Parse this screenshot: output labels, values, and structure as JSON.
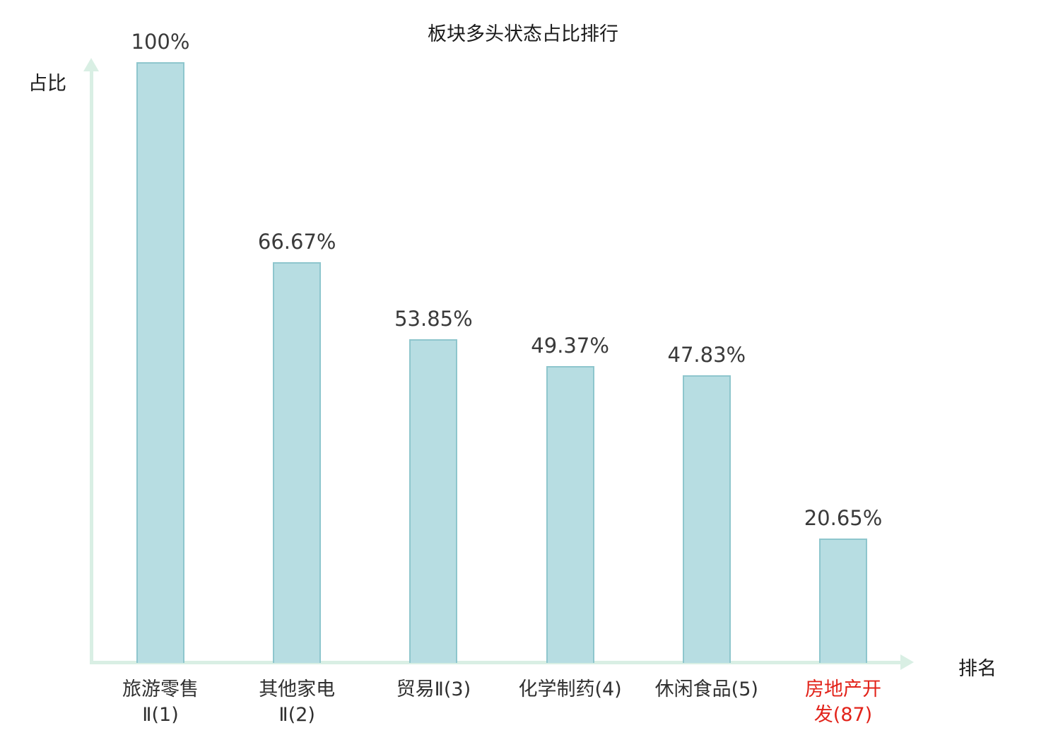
{
  "chart_data": {
    "type": "bar",
    "title": "板块多头状态占比排行",
    "xlabel": "排名",
    "ylabel": "占比",
    "ylim": [
      0,
      100
    ],
    "grid": false,
    "legend": "none",
    "categories": [
      "旅游零售Ⅱ(1)",
      "其他家电Ⅱ(2)",
      "贸易Ⅱ(3)",
      "化学制药(4)",
      "休闲食品(5)",
      "房地产开发(87)"
    ],
    "values": [
      100,
      66.67,
      53.85,
      49.37,
      47.83,
      20.65
    ],
    "value_labels": [
      "100%",
      "66.67%",
      "53.85%",
      "49.37%",
      "47.83%",
      "20.65%"
    ],
    "category_lines": [
      [
        "旅游零售",
        "Ⅱ(1)"
      ],
      [
        "其他家电",
        "Ⅱ(2)"
      ],
      [
        "贸易Ⅱ(3)"
      ],
      [
        "化学制药(4)"
      ],
      [
        "休闲食品(5)"
      ],
      [
        "房地产开",
        "发(87)"
      ]
    ],
    "category_colors": [
      "#303030",
      "#303030",
      "#303030",
      "#303030",
      "#303030",
      "#e2231a"
    ],
    "bar_fill": "#b7dde2",
    "bar_border": "#8ec6cd",
    "axis_color": "#d9efe4",
    "value_label_color": "#3a3a3a",
    "highlight_color": "#e2231a"
  }
}
